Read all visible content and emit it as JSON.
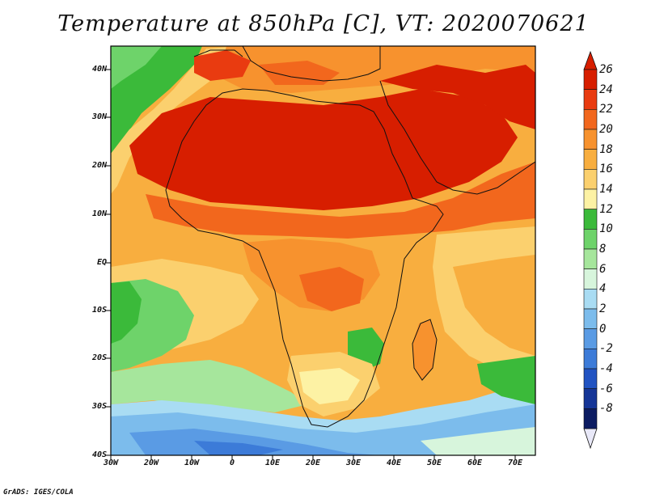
{
  "title": "Temperature at 850hPa [C], VT: 2020070621",
  "credit": "GrADS: IGES/COLA",
  "map": {
    "lat_labels": [
      "40N",
      "30N",
      "20N",
      "10N",
      "EQ",
      "10S",
      "20S",
      "30S",
      "40S"
    ],
    "lon_labels": [
      "30W",
      "20W",
      "10W",
      "0",
      "10E",
      "20E",
      "30E",
      "40E",
      "50E",
      "60E",
      "70E"
    ],
    "extent": {
      "lon_min": -30,
      "lon_max": 75,
      "lat_min": -40,
      "lat_max": 45
    }
  },
  "colorbar": {
    "labels": [
      "26",
      "24",
      "22",
      "20",
      "18",
      "16",
      "14",
      "12",
      "10",
      "8",
      "6",
      "4",
      "2",
      "0",
      "-2",
      "-4",
      "-6",
      "-8"
    ],
    "colors": [
      "#d71e00",
      "#e93b10",
      "#f2671d",
      "#f7922e",
      "#f8ae3f",
      "#fbd06e",
      "#fdf2a4",
      "#3bba3a",
      "#6ed36a",
      "#a6e69c",
      "#d7f5dc",
      "#a9dcf3",
      "#7cbcec",
      "#5a9be4",
      "#3c7bd8",
      "#2153c2",
      "#153597",
      "#0c1c62"
    ],
    "over_color": "#d71e00",
    "under_color": "#e8e8f8"
  }
}
